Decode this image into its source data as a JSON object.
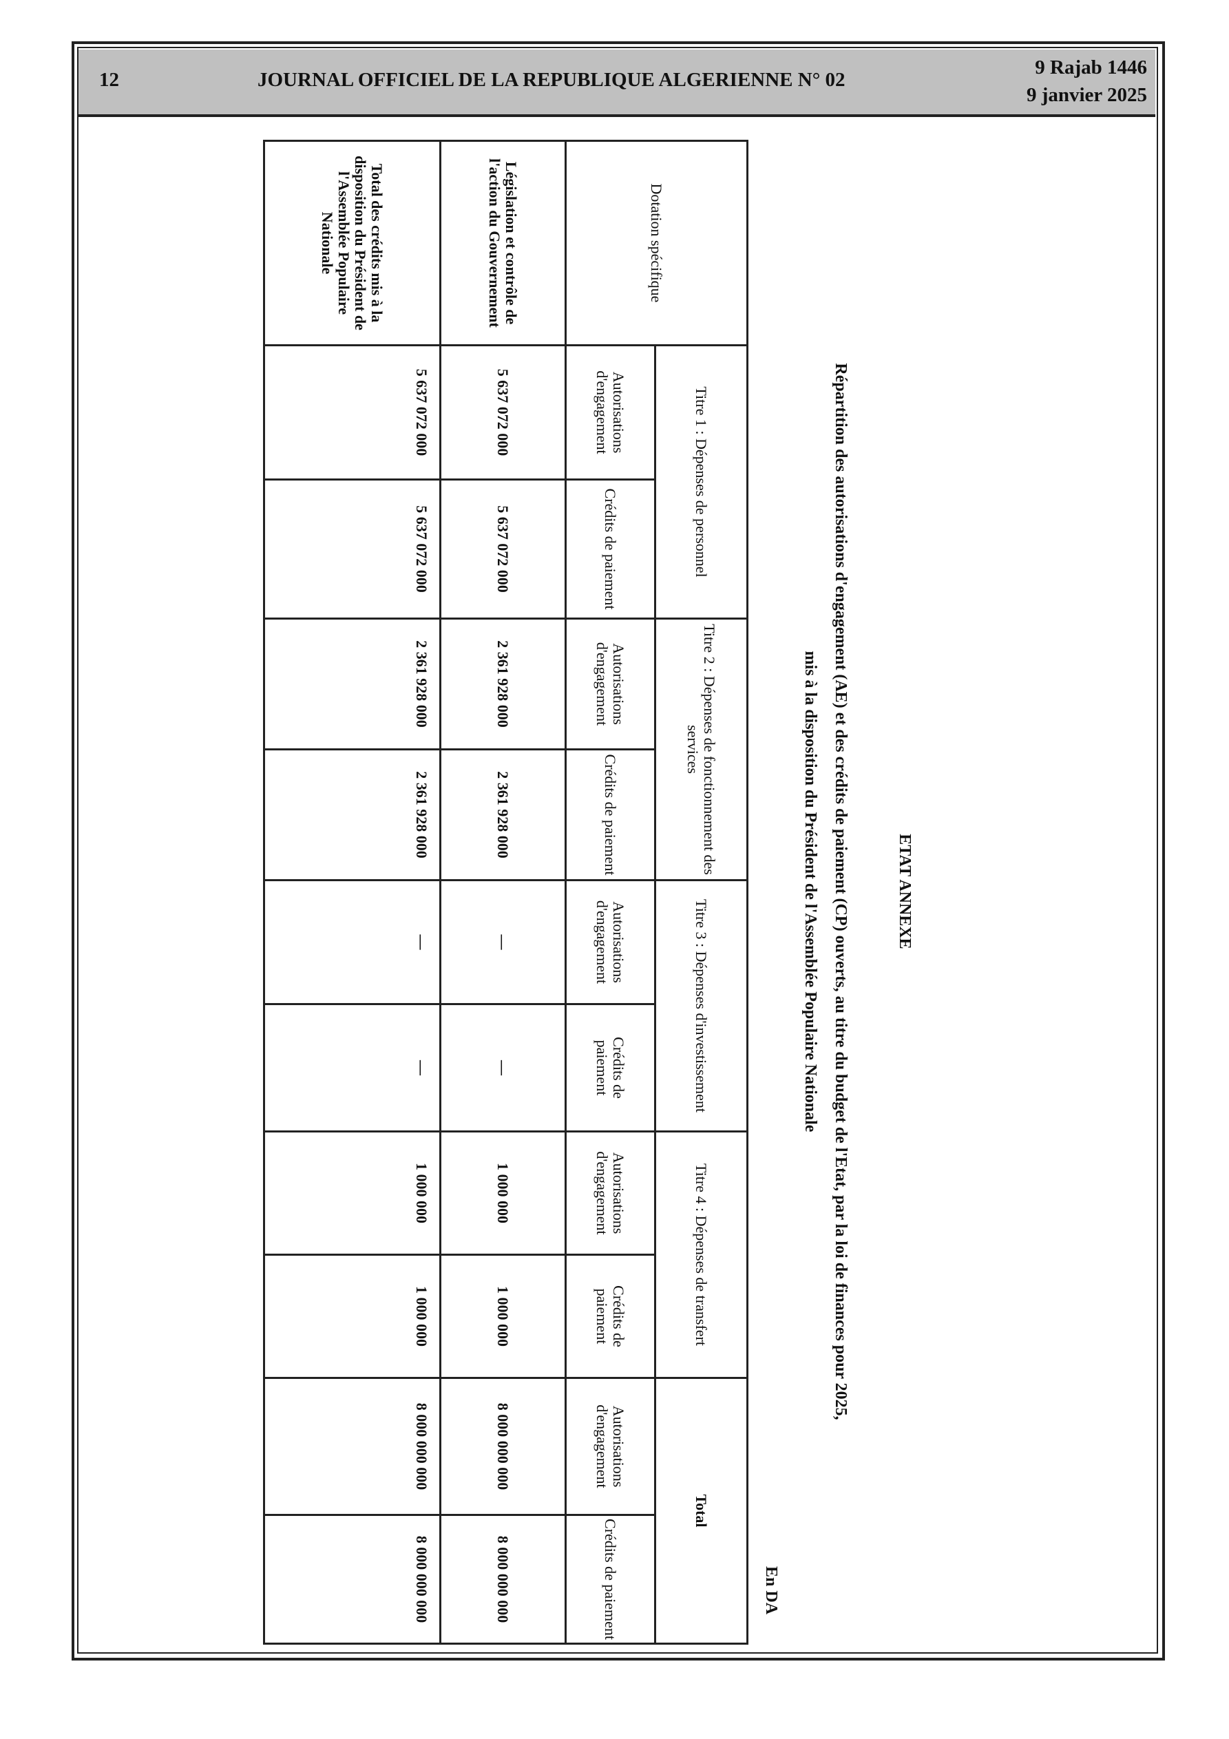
{
  "header": {
    "page_number": "12",
    "journal_title": "JOURNAL OFFICIEL DE LA REPUBLIQUE ALGERIENNE N° 02",
    "date_hijri": "9 Rajab 1446",
    "date_gregorian": "9 janvier 2025"
  },
  "annex": {
    "heading": "ETAT ANNEXE",
    "title_line1": "Répartition des autorisations d'engagement (AE) et des crédits de paiement (CP) ouverts, au titre du budget de l'Etat, par la loi de finances pour 2025,",
    "title_line2": "mis à la disposition du Président de l'Assemblée Populaire Nationale",
    "unit": "En DA",
    "table": {
      "row_header": "Dotation spécifique",
      "groups": [
        "Titre 1 : Dépenses de personnel",
        "Titre 2 : Dépenses de fonctionnement des services",
        "Titre 3 : Dépenses d'investissement",
        "Titre 4 : Dépenses de transfert",
        "Total"
      ],
      "sub_ae": "Autorisations d'engagement",
      "sub_cp": "Crédits de paiement",
      "rows": [
        {
          "label": "Législation et contrôle de l'action du Gouvernement",
          "values": [
            "5 637 072 000",
            "5 637 072 000",
            "2 361 928 000",
            "2 361 928 000",
            "—",
            "—",
            "1 000 000",
            "1 000 000",
            "8 000 000 000",
            "8 000 000 000"
          ]
        },
        {
          "label": "Total des crédits mis à la disposition du Président de l'Assemblée Populaire Nationale",
          "values": [
            "5 637 072 000",
            "5 637 072 000",
            "2 361 928 000",
            "2 361 928 000",
            "—",
            "—",
            "1 000 000",
            "1 000 000",
            "8 000 000 000",
            "8 000 000 000"
          ]
        }
      ]
    }
  }
}
